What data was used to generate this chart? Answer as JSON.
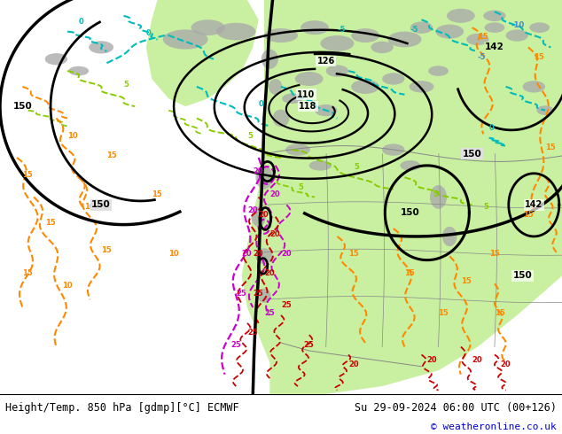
{
  "title_left": "Height/Temp. 850 hPa [gdmp][°C] ECMWF",
  "title_right": "Su 29-09-2024 06:00 UTC (00+126)",
  "copyright": "© weatheronline.co.uk",
  "map_bg": "#e0e0e0",
  "green_fill": "#c8f0a0",
  "copyright_color": "#0000cc",
  "orange": "#FF8800",
  "cyan": "#00BBBB",
  "green_c": "#88CC00",
  "magenta": "#CC00CC",
  "red": "#CC0000",
  "blue_c": "#4488CC"
}
